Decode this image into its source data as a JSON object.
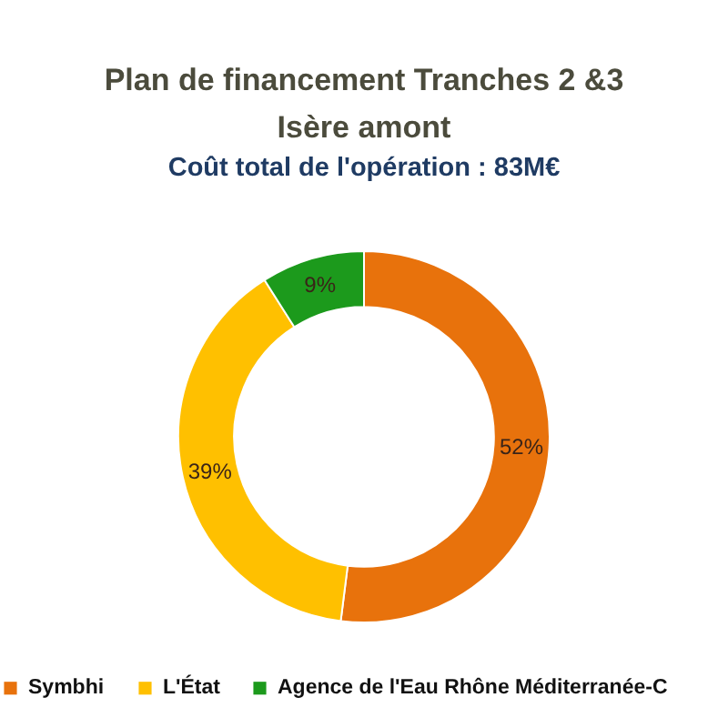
{
  "chart_data": {
    "type": "donut",
    "title": "Plan de financement Tranches 2 &3\nIsère amont",
    "subtitle": "Coût total de l'opération : 83M€",
    "categories": [
      "Symbhi",
      "L'État",
      "Agence de l'Eau Rhône Méditerranée-C"
    ],
    "values": [
      52,
      39,
      9
    ],
    "colors": [
      "#e8720c",
      "#ffc000",
      "#1c9a1c"
    ],
    "value_labels": [
      "52%",
      "39%",
      "9%"
    ],
    "legend": "bottom"
  }
}
